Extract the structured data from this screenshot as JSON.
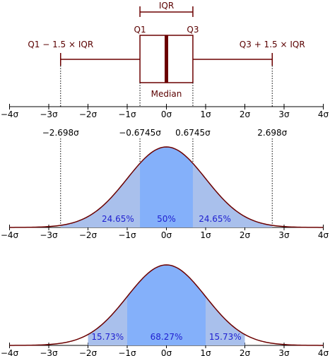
{
  "colors": {
    "dark_red": "#6b0000",
    "fill_outer": "#a9c0ec",
    "fill_inner": "#84b0fa",
    "percent_text": "#1f1fd0",
    "axis": "#000000"
  },
  "boxplot": {
    "iqr_label": "IQR",
    "q1_label": "Q1",
    "q3_label": "Q3",
    "median_label": "Median",
    "lower_whisker_label": "Q1 − 1.5 × IQR",
    "upper_whisker_label": "Q3 + 1.5 × IQR",
    "q1": -0.6745,
    "median": 0,
    "q3": 0.6745,
    "lower_whisker": -2.698,
    "upper_whisker": 2.698
  },
  "axis": {
    "min": -4,
    "max": 4,
    "ticks": [
      {
        "value": -4,
        "label": "−4σ"
      },
      {
        "value": -3,
        "label": "−3σ"
      },
      {
        "value": -2,
        "label": "−2σ"
      },
      {
        "value": -1,
        "label": "−1σ"
      },
      {
        "value": 0,
        "label": "0σ"
      },
      {
        "value": 1,
        "label": "1σ"
      },
      {
        "value": 2,
        "label": "2σ"
      },
      {
        "value": 3,
        "label": "3σ"
      },
      {
        "value": 4,
        "label": "4σ"
      }
    ]
  },
  "value_labels": [
    {
      "value": -2.698,
      "label": "−2.698σ"
    },
    {
      "value": -0.6745,
      "label": "−0.6745σ"
    },
    {
      "value": 0.6745,
      "label": "0.6745σ"
    },
    {
      "value": 2.698,
      "label": "2.698σ"
    }
  ],
  "upper_density": {
    "inner_range": [
      -0.6745,
      0.6745
    ],
    "outer_range": [
      -2.698,
      2.698
    ],
    "left_percent": "24.65%",
    "center_percent": "50%",
    "right_percent": "24.65%"
  },
  "lower_density": {
    "inner_range": [
      -1,
      1
    ],
    "outer_range": [
      -2,
      2
    ],
    "left_percent": "15.73%",
    "center_percent": "68.27%",
    "right_percent": "15.73%"
  }
}
